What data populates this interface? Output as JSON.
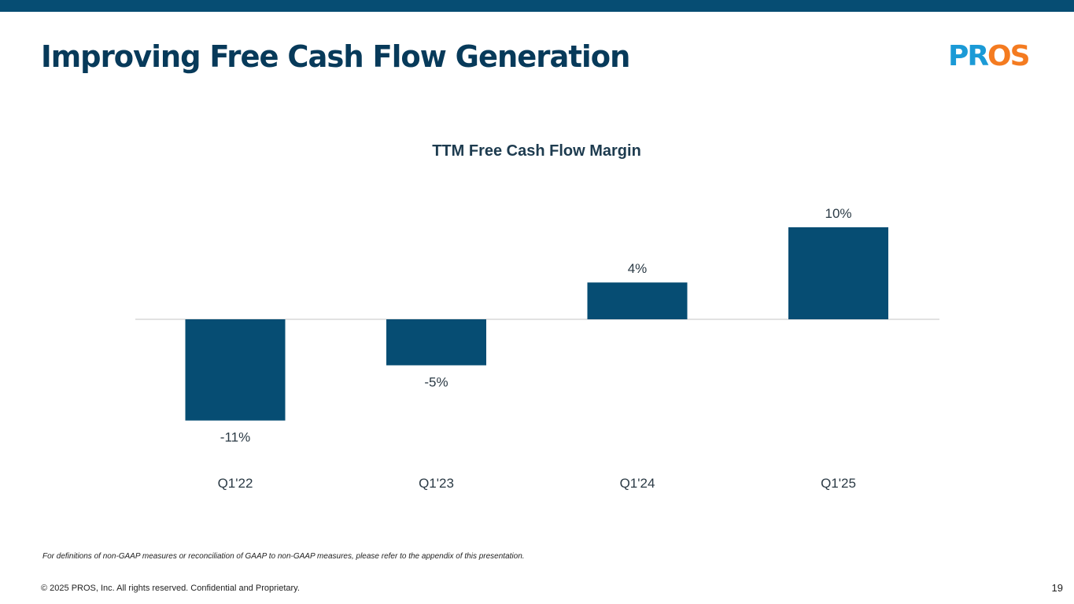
{
  "slide": {
    "title": "Improving Free Cash Flow Generation",
    "footnote": "For definitions of non-GAAP measures or reconciliation of GAAP to non-GAAP measures, please refer to the appendix of this presentation.",
    "copyright": "© 2025 PROS, Inc. All rights reserved. Confidential and Proprietary.",
    "page_number": "19",
    "logo_text": "PROS"
  },
  "colors": {
    "brand_bar": "#064d73",
    "bar_fill": "#064d73",
    "logo_blue": "#1b9ad6",
    "logo_orange": "#f47b20"
  },
  "chart_data": {
    "type": "bar",
    "title": "TTM Free Cash Flow Margin",
    "categories": [
      "Q1'22",
      "Q1'23",
      "Q1'24",
      "Q1'25"
    ],
    "values": [
      -11,
      -5,
      4,
      10
    ],
    "data_labels": [
      "-11%",
      "-5%",
      "4%",
      "10%"
    ],
    "unit": "%",
    "xlabel": "",
    "ylabel": "",
    "ylim": [
      -11,
      10
    ],
    "grid": false,
    "legend": "none"
  }
}
